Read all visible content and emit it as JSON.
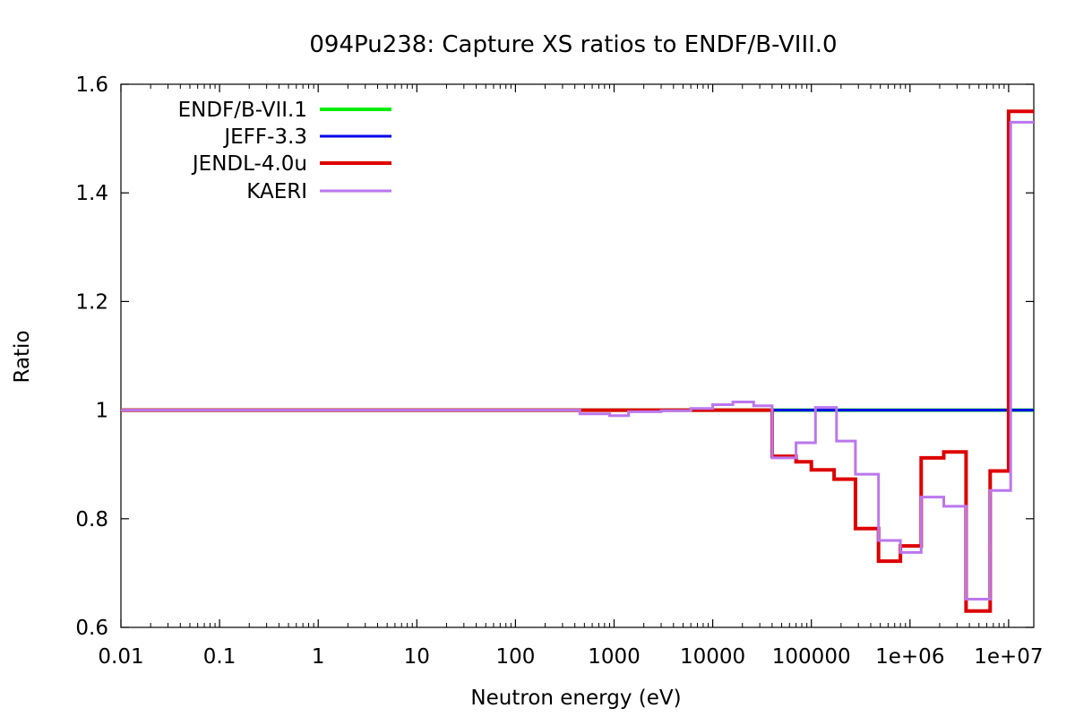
{
  "chart_data": {
    "type": "line",
    "title": "094Pu238: Capture XS ratios to ENDF/B-VIII.0",
    "xlabel": "Neutron energy (eV)",
    "ylabel": "Ratio",
    "xscale": "log",
    "xlim": [
      0.01,
      18000000
    ],
    "ylim": [
      0.6,
      1.6
    ],
    "xticks": [
      {
        "value": 0.01,
        "label": "0.01"
      },
      {
        "value": 0.1,
        "label": "0.1"
      },
      {
        "value": 1,
        "label": "1"
      },
      {
        "value": 10,
        "label": "10"
      },
      {
        "value": 100,
        "label": "100"
      },
      {
        "value": 1000,
        "label": "1000"
      },
      {
        "value": 10000,
        "label": "10000"
      },
      {
        "value": 100000,
        "label": "100000"
      },
      {
        "value": 1000000,
        "label": "1e+06"
      },
      {
        "value": 10000000,
        "label": "1e+07"
      }
    ],
    "yticks": [
      {
        "value": 0.6,
        "label": "0.6"
      },
      {
        "value": 0.8,
        "label": "0.8"
      },
      {
        "value": 1.0,
        "label": "1"
      },
      {
        "value": 1.2,
        "label": "1.2"
      },
      {
        "value": 1.4,
        "label": "1.4"
      },
      {
        "value": 1.6,
        "label": "1.6"
      }
    ],
    "grid": false,
    "legend_position": "top-left",
    "series": [
      {
        "name": "ENDF/B-VII.1",
        "color": "#00ee00",
        "x": [
          0.01,
          18000000
        ],
        "y": [
          1.0,
          1.0
        ]
      },
      {
        "name": "JEFF-3.3",
        "color": "#0000ee",
        "x": [
          0.01,
          18000000
        ],
        "y": [
          1.0,
          1.0
        ]
      },
      {
        "name": "JENDL-4.0u",
        "color": "#dd0000",
        "x": [
          0.01,
          450,
          900,
          3000,
          10000,
          20000,
          40000,
          70000,
          100000,
          170000,
          280000,
          480000,
          800000,
          1300000,
          2200000,
          3700000,
          6500000,
          10000000,
          18000000
        ],
        "y": [
          1.0,
          1.0,
          1.0,
          1.0,
          1.0,
          1.0,
          0.915,
          0.905,
          0.89,
          0.873,
          0.782,
          0.722,
          0.75,
          0.912,
          0.923,
          0.63,
          0.888,
          1.55,
          1.55
        ]
      },
      {
        "name": "KAERI",
        "color": "#bb77ee",
        "x": [
          0.01,
          450,
          900,
          1400,
          3000,
          6000,
          10000,
          16000,
          26000,
          40000,
          70000,
          110000,
          180000,
          280000,
          480000,
          800000,
          1300000,
          2200000,
          3700000,
          6500000,
          9500000,
          10500000,
          18000000
        ],
        "y": [
          1.0,
          0.993,
          0.99,
          0.997,
          0.999,
          1.003,
          1.01,
          1.015,
          1.008,
          0.912,
          0.94,
          1.005,
          0.943,
          0.882,
          0.76,
          0.738,
          0.84,
          0.823,
          0.652,
          0.852,
          0.852,
          1.53,
          1.53
        ]
      }
    ]
  }
}
